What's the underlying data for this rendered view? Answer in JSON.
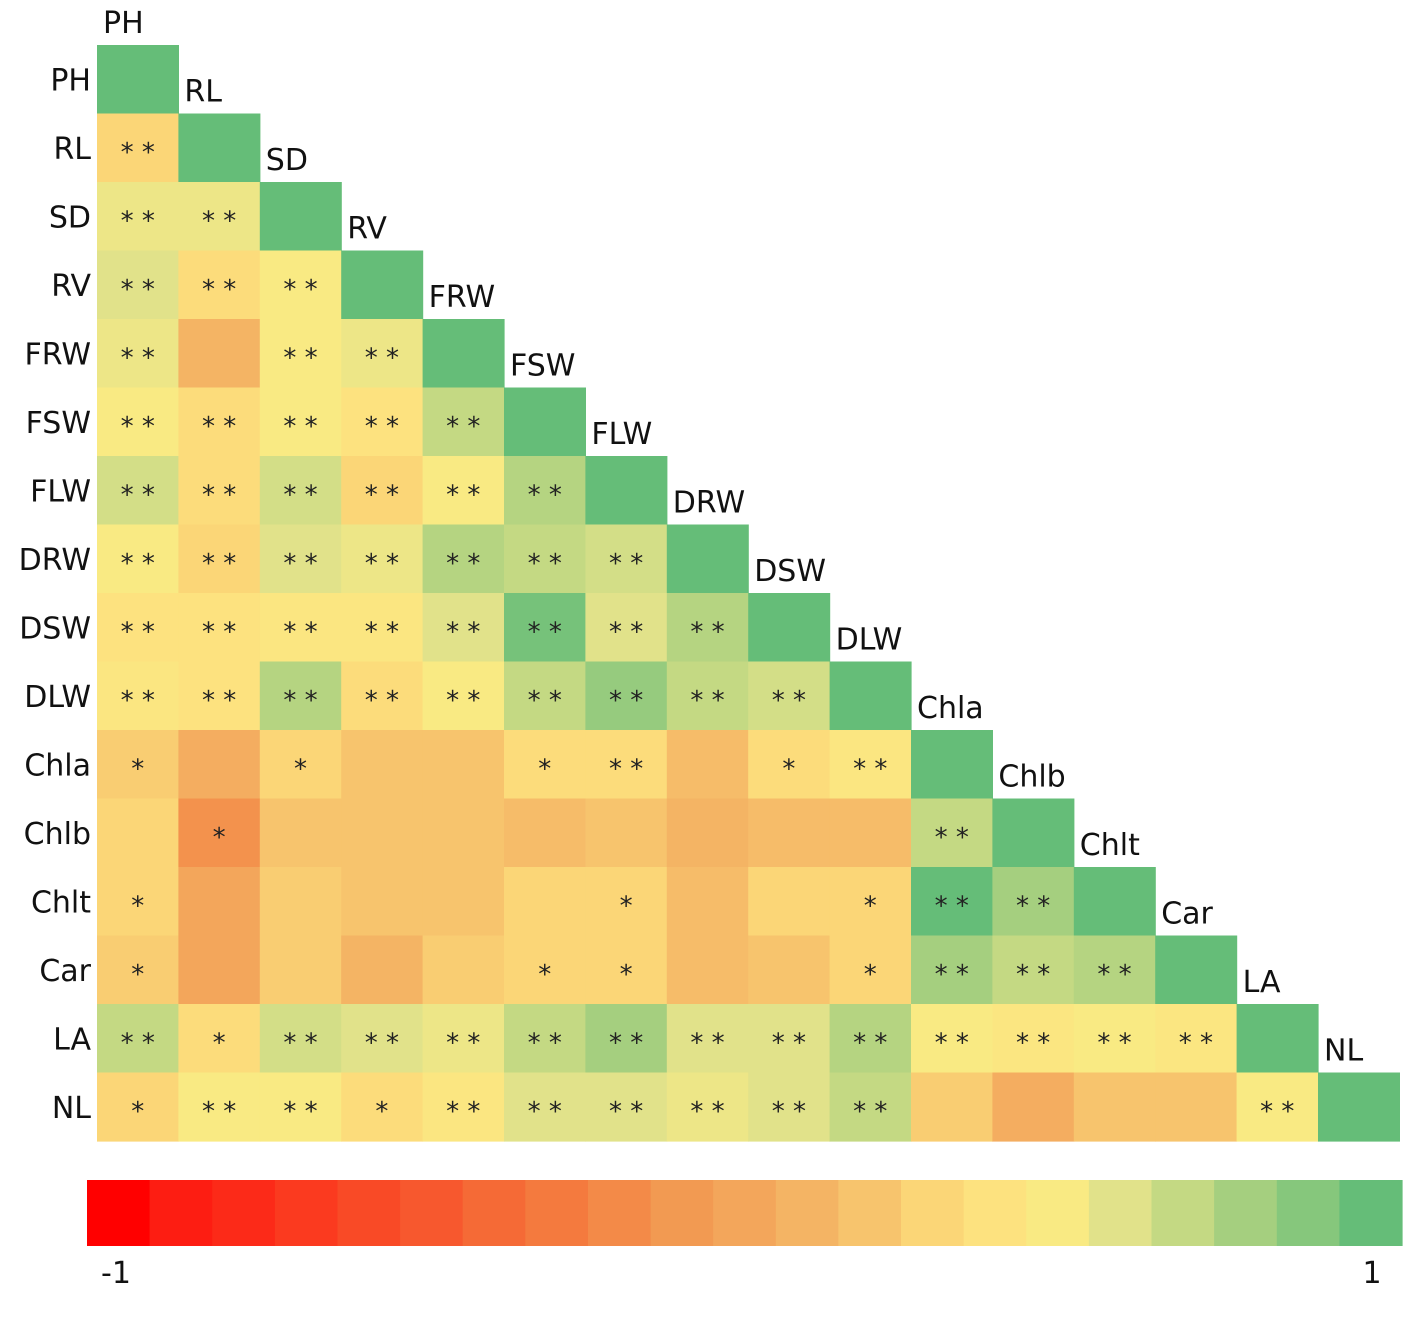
{
  "chart_data": {
    "type": "heatmap",
    "variables": [
      "PH",
      "RL",
      "SD",
      "RV",
      "FRW",
      "FSW",
      "FLW",
      "DRW",
      "DSW",
      "DLW",
      "Chla",
      "Chlb",
      "Chlt",
      "Car",
      "LA",
      "NL"
    ],
    "matrix": [
      [
        1
      ],
      [
        0.3,
        1
      ],
      [
        0.55,
        0.55,
        1
      ],
      [
        0.6,
        0.35,
        0.5,
        1
      ],
      [
        0.55,
        0.1,
        0.5,
        0.55,
        1
      ],
      [
        0.5,
        0.35,
        0.5,
        0.4,
        0.7,
        1
      ],
      [
        0.65,
        0.35,
        0.65,
        0.3,
        0.5,
        0.75,
        1
      ],
      [
        0.5,
        0.3,
        0.6,
        0.55,
        0.75,
        0.7,
        0.65,
        1
      ],
      [
        0.4,
        0.4,
        0.45,
        0.45,
        0.6,
        0.95,
        0.6,
        0.75,
        1
      ],
      [
        0.45,
        0.4,
        0.75,
        0.35,
        0.5,
        0.7,
        0.85,
        0.7,
        0.65,
        1
      ],
      [
        0.25,
        0.05,
        0.3,
        0.2,
        0.2,
        0.35,
        0.35,
        0.15,
        0.35,
        0.45,
        1
      ],
      [
        0.3,
        -0.15,
        0.2,
        0.2,
        0.2,
        0.15,
        0.2,
        0.1,
        0.15,
        0.15,
        0.7,
        1
      ],
      [
        0.3,
        0.0,
        0.25,
        0.2,
        0.2,
        0.3,
        0.3,
        0.15,
        0.3,
        0.3,
        1.0,
        0.8,
        1
      ],
      [
        0.25,
        0.0,
        0.25,
        0.1,
        0.25,
        0.3,
        0.3,
        0.15,
        0.2,
        0.3,
        0.8,
        0.7,
        0.75,
        1
      ],
      [
        0.7,
        0.35,
        0.65,
        0.6,
        0.55,
        0.7,
        0.8,
        0.6,
        0.6,
        0.75,
        0.5,
        0.45,
        0.5,
        0.45,
        1
      ],
      [
        0.3,
        0.5,
        0.5,
        0.35,
        0.45,
        0.6,
        0.6,
        0.55,
        0.6,
        0.7,
        0.25,
        0.05,
        0.2,
        0.2,
        0.5,
        1
      ]
    ],
    "significance": [
      [
        ""
      ],
      [
        "**",
        ""
      ],
      [
        "**",
        "**",
        ""
      ],
      [
        "**",
        "**",
        "**",
        ""
      ],
      [
        "**",
        "",
        "**",
        "**",
        ""
      ],
      [
        "**",
        "**",
        "**",
        "**",
        "**",
        ""
      ],
      [
        "**",
        "**",
        "**",
        "**",
        "**",
        "**",
        ""
      ],
      [
        "**",
        "**",
        "**",
        "**",
        "**",
        "**",
        "**",
        ""
      ],
      [
        "**",
        "**",
        "**",
        "**",
        "**",
        "**",
        "**",
        "**",
        ""
      ],
      [
        "**",
        "**",
        "**",
        "**",
        "**",
        "**",
        "**",
        "**",
        "**",
        ""
      ],
      [
        "*",
        "",
        "*",
        "",
        "",
        "*",
        "**",
        "",
        "*",
        "**",
        ""
      ],
      [
        "",
        "*",
        "",
        "",
        "",
        "",
        "",
        "",
        "",
        "",
        "**",
        ""
      ],
      [
        "*",
        "",
        "",
        "",
        "",
        "",
        "*",
        "",
        "",
        "*",
        "**",
        "**",
        ""
      ],
      [
        "*",
        "",
        "",
        "",
        "",
        "*",
        "*",
        "",
        "",
        "*",
        "**",
        "**",
        "**",
        ""
      ],
      [
        "**",
        "*",
        "**",
        "**",
        "**",
        "**",
        "**",
        "**",
        "**",
        "**",
        "**",
        "**",
        "**",
        "**",
        ""
      ],
      [
        "*",
        "**",
        "**",
        "*",
        "**",
        "**",
        "**",
        "**",
        "**",
        "**",
        "",
        "",
        "",
        "",
        "**",
        ""
      ]
    ],
    "colorbar": {
      "min": -1,
      "max": 1,
      "min_label": "-1",
      "max_label": "1",
      "colors": [
        "#ff0000",
        "#fd1d12",
        "#fc2a18",
        "#fb3a1f",
        "#f94a26",
        "#f7582e",
        "#f56a36",
        "#f47a3e",
        "#f38a48",
        "#f29a52",
        "#f3a65b",
        "#f4b464",
        "#f7c46d",
        "#fbd677",
        "#fde27f",
        "#f9ea83",
        "#e1e28a",
        "#c4d983",
        "#a5cf7f",
        "#86c77c",
        "#65bd78"
      ]
    }
  }
}
